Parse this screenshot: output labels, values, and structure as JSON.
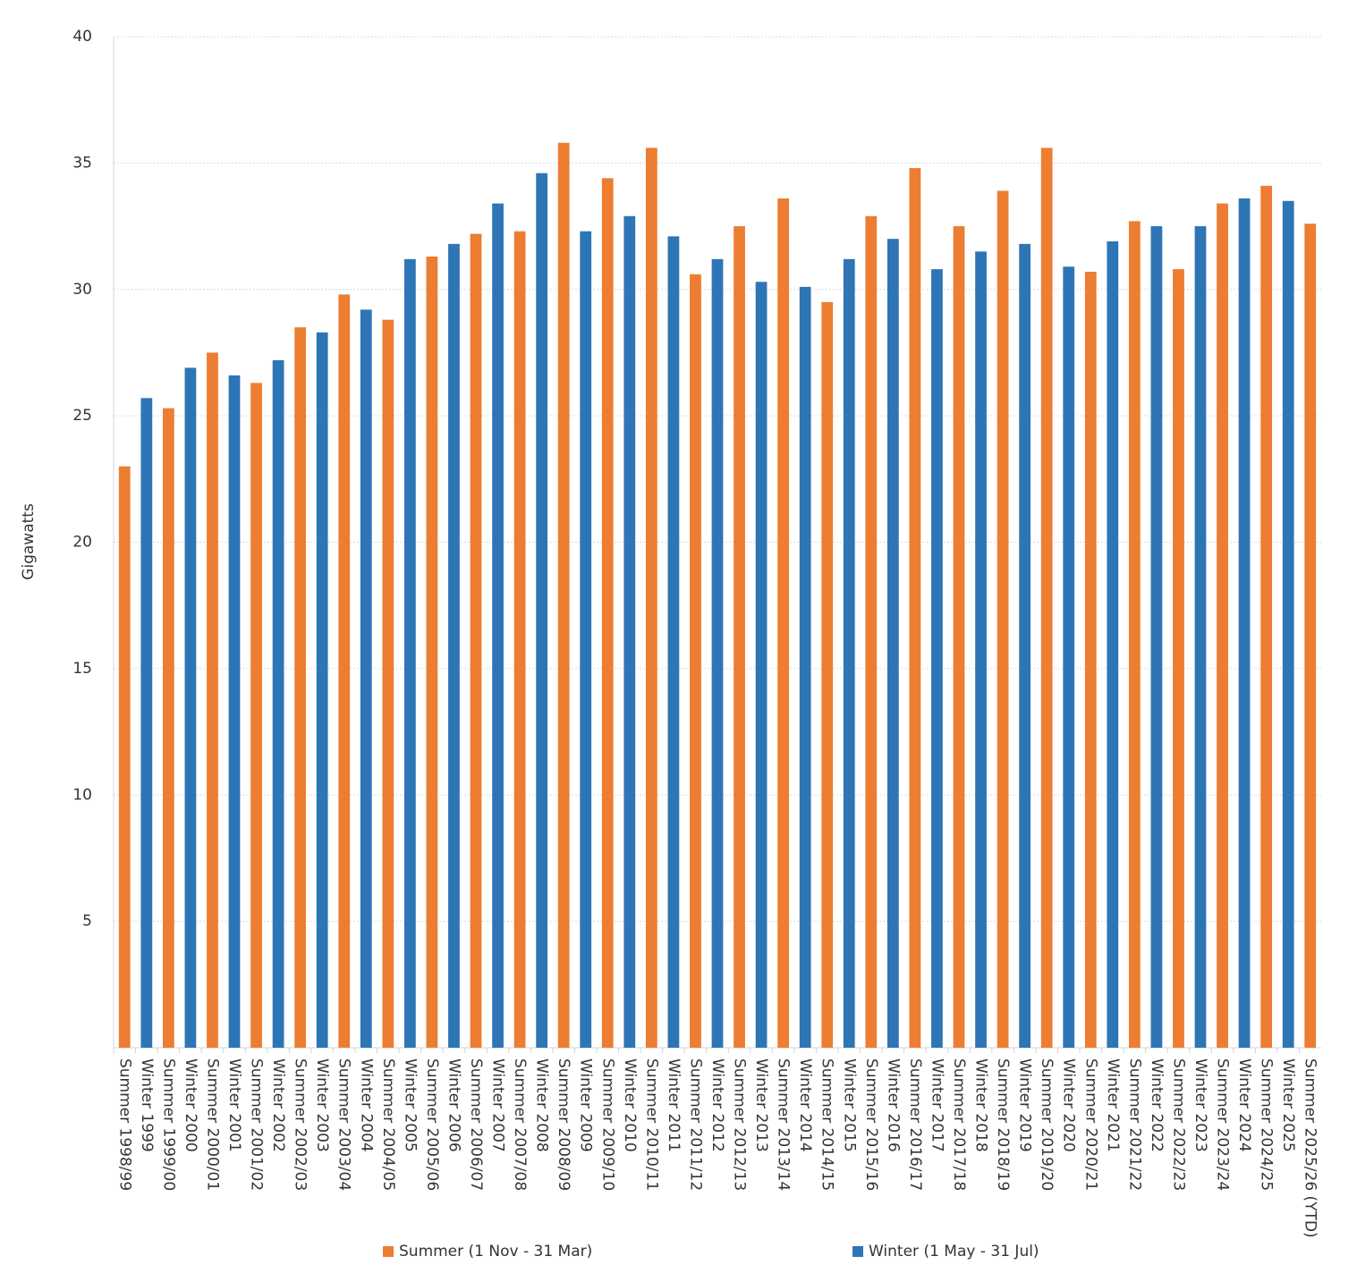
{
  "chart_data": {
    "type": "bar",
    "y_label": "Gigawatts",
    "categories": [
      "Summer 1998/99",
      "Winter 1999",
      "Summer 1999/00",
      "Winter 2000",
      "Summer 2000/01",
      "Winter 2001",
      "Summer 2001/02",
      "Winter 2002",
      "Summer 2002/03",
      "Winter 2003",
      "Summer 2003/04",
      "Winter 2004",
      "Summer 2004/05",
      "Winter 2005",
      "Summer 2005/06",
      "Winter 2006",
      "Summer 2006/07",
      "Winter 2007",
      "Summer 2007/08",
      "Winter 2008",
      "Summer 2008/09",
      "Winter 2009",
      "Summer 2009/10",
      "Winter 2010",
      "Summer 2010/11",
      "Winter 2011",
      "Summer 2011/12",
      "Winter 2012",
      "Summer 2012/13",
      "Winter 2013",
      "Summer 2013/14",
      "Winter 2014",
      "Summer 2014/15",
      "Winter 2015",
      "Summer 2015/16",
      "Winter 2016",
      "Summer 2016/17",
      "Winter 2017",
      "Summer 2017/18",
      "Winter 2018",
      "Summer 2018/19",
      "Winter 2019",
      "Summer 2019/20",
      "Winter 2020",
      "Summer 2020/21",
      "Winter 2021",
      "Summer 2021/22",
      "Winter 2022",
      "Summer 2022/23",
      "Winter 2023",
      "Summer 2023/24",
      "Winter 2024",
      "Summer 2024/25",
      "Winter 2025",
      "Summer 2025/26 (YTD)"
    ],
    "series": [
      {
        "name": "Summer (1 Nov - 31 Mar)",
        "color": "#ed7d31",
        "values": [
          23.0,
          null,
          25.3,
          null,
          27.5,
          null,
          26.3,
          null,
          28.5,
          null,
          29.8,
          null,
          28.8,
          null,
          31.3,
          null,
          32.2,
          null,
          32.3,
          null,
          35.8,
          null,
          34.4,
          null,
          35.6,
          null,
          30.6,
          null,
          32.5,
          null,
          33.6,
          null,
          29.5,
          null,
          32.9,
          null,
          34.8,
          null,
          32.5,
          null,
          33.9,
          null,
          35.6,
          null,
          30.7,
          null,
          32.7,
          null,
          30.8,
          null,
          33.4,
          null,
          34.1,
          null,
          32.6
        ]
      },
      {
        "name": "Winter (1 May - 31 Jul)",
        "color": "#2e75b6",
        "values": [
          null,
          25.7,
          null,
          26.9,
          null,
          26.6,
          null,
          27.2,
          null,
          28.3,
          null,
          29.2,
          null,
          31.2,
          null,
          31.8,
          null,
          33.4,
          null,
          34.6,
          null,
          32.3,
          null,
          32.9,
          null,
          32.1,
          null,
          31.2,
          null,
          30.3,
          null,
          30.1,
          null,
          31.2,
          null,
          32.0,
          null,
          30.8,
          null,
          31.5,
          null,
          31.8,
          null,
          30.9,
          null,
          31.9,
          null,
          32.5,
          null,
          32.5,
          null,
          33.6,
          null,
          33.5,
          null
        ]
      }
    ],
    "ylim": [
      0,
      40
    ],
    "yticks": [
      5,
      10,
      15,
      20,
      25,
      30,
      35,
      40
    ],
    "grid": true,
    "legend": "bottom"
  }
}
